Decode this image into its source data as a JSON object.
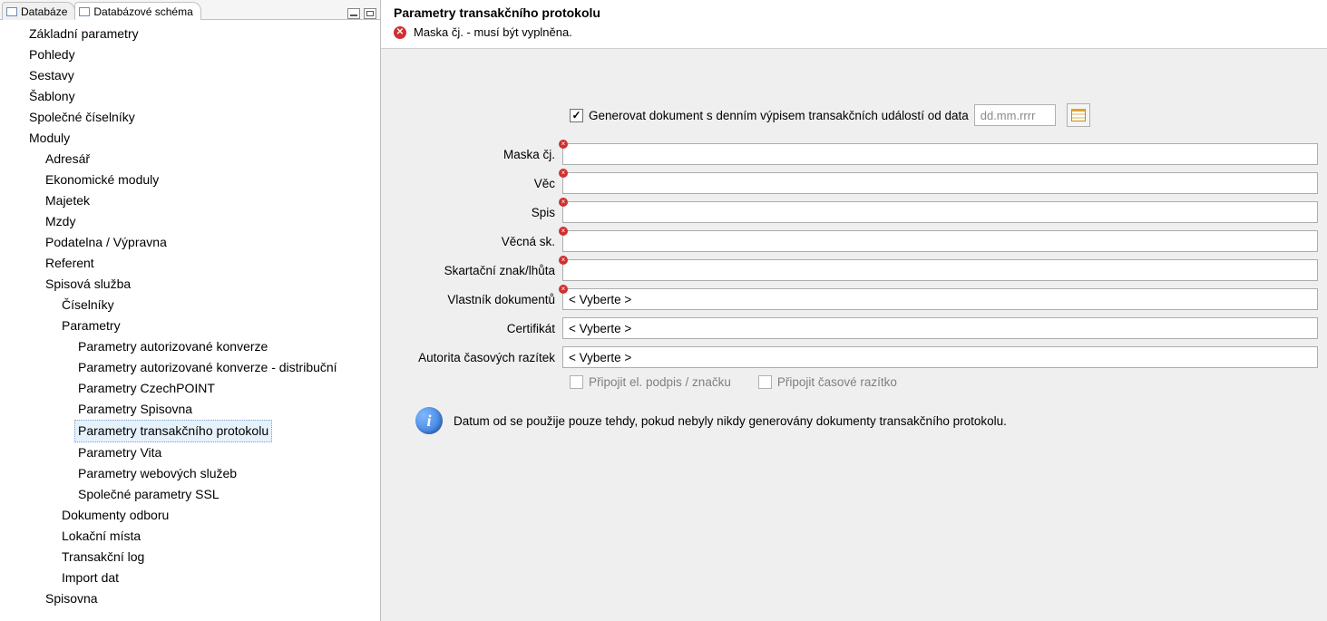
{
  "tabs": {
    "list": [
      {
        "label": "Databáze",
        "active": false
      },
      {
        "label": "Databázové schéma",
        "active": true
      }
    ]
  },
  "tree": [
    {
      "label": "Základní parametry",
      "level": 0
    },
    {
      "label": "Pohledy",
      "level": 0
    },
    {
      "label": "Sestavy",
      "level": 0
    },
    {
      "label": "Šablony",
      "level": 0
    },
    {
      "label": "Společné číselníky",
      "level": 0
    },
    {
      "label": "Moduly",
      "level": 0
    },
    {
      "label": "Adresář",
      "level": 1
    },
    {
      "label": "Ekonomické moduly",
      "level": 1
    },
    {
      "label": "Majetek",
      "level": 1
    },
    {
      "label": "Mzdy",
      "level": 1
    },
    {
      "label": "Podatelna / Výpravna",
      "level": 1
    },
    {
      "label": "Referent",
      "level": 1
    },
    {
      "label": "Spisová služba",
      "level": 1
    },
    {
      "label": "Číselníky",
      "level": 2
    },
    {
      "label": "Parametry",
      "level": 2
    },
    {
      "label": "Parametry autorizované konverze",
      "level": 3
    },
    {
      "label": "Parametry autorizované konverze - distribuční",
      "level": 3
    },
    {
      "label": "Parametry CzechPOINT",
      "level": 3
    },
    {
      "label": "Parametry Spisovna",
      "level": 3
    },
    {
      "label": "Parametry transakčního protokolu",
      "level": 3,
      "selected": true
    },
    {
      "label": "Parametry Vita",
      "level": 3
    },
    {
      "label": "Parametry webových služeb",
      "level": 3
    },
    {
      "label": "Společné parametry SSL",
      "level": 3
    },
    {
      "label": "Dokumenty odboru",
      "level": 2
    },
    {
      "label": "Lokační místa",
      "level": 2
    },
    {
      "label": "Transakční log",
      "level": 2
    },
    {
      "label": "Import dat",
      "level": 2
    },
    {
      "label": "Spisovna",
      "level": 1
    }
  ],
  "page": {
    "title": "Parametry transakčního protokolu",
    "validation_msg": "Maska čj. - musí být vyplněna.",
    "generate_label": "Generovat dokument s denním výpisem transakčních událostí  od data",
    "generate_checked": true,
    "date_placeholder": "dd.mm.rrrr",
    "fields": {
      "maska": {
        "label": "Maska čj.",
        "value": "",
        "required": true
      },
      "vec": {
        "label": "Věc",
        "value": "",
        "required": true
      },
      "spis": {
        "label": "Spis",
        "value": "",
        "required": true
      },
      "vecna_sk": {
        "label": "Věcná sk.",
        "value": "",
        "required": true
      },
      "skartacni": {
        "label": "Skartační znak/lhůta",
        "value": "",
        "required": true
      },
      "vlastnik": {
        "label": "Vlastník dokumentů",
        "value": "< Vyberte >",
        "required": true
      },
      "certifikat": {
        "label": "Certifikát",
        "value": "< Vyberte >"
      },
      "autorita": {
        "label": "Autorita časových razítek",
        "value": "< Vyberte >"
      }
    },
    "attach_sig_label": "Připojit el. podpis / značku",
    "attach_time_label": "Připojit časové razítko",
    "info_text": "Datum od se použije pouze tehdy, pokud nebyly nikdy generovány dokumenty transakčního protokolu."
  },
  "colors": {
    "panel_bg": "#efefef",
    "error": "#d03030",
    "info_icon": "#2a6fd8",
    "border": "#adadad"
  }
}
